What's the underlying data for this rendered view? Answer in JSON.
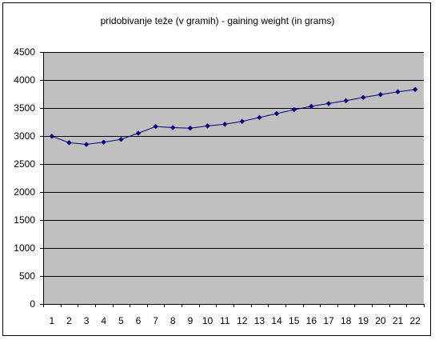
{
  "chart_data": {
    "type": "line",
    "title": "pridobivanje teže (v gramih) - gaining weight (in grams)",
    "xlabel": "",
    "ylabel": "",
    "categories": [
      "1",
      "2",
      "3",
      "4",
      "5",
      "6",
      "7",
      "8",
      "9",
      "10",
      "11",
      "12",
      "13",
      "14",
      "15",
      "16",
      "17",
      "18",
      "19",
      "20",
      "21",
      "22"
    ],
    "series": [
      {
        "values": [
          2995,
          2880,
          2850,
          2890,
          2940,
          3050,
          3170,
          3150,
          3140,
          3180,
          3210,
          3260,
          3330,
          3400,
          3470,
          3530,
          3580,
          3630,
          3690,
          3740,
          3790,
          3830
        ]
      }
    ],
    "ylim": [
      0,
      4500
    ],
    "yticks": [
      0,
      500,
      1000,
      1500,
      2000,
      2500,
      3000,
      3500,
      4000,
      4500
    ],
    "grid": true,
    "legend": "none",
    "colors": {
      "plot_background": "#c0c0c0",
      "series": "#000080",
      "gridline": "#000000"
    }
  }
}
